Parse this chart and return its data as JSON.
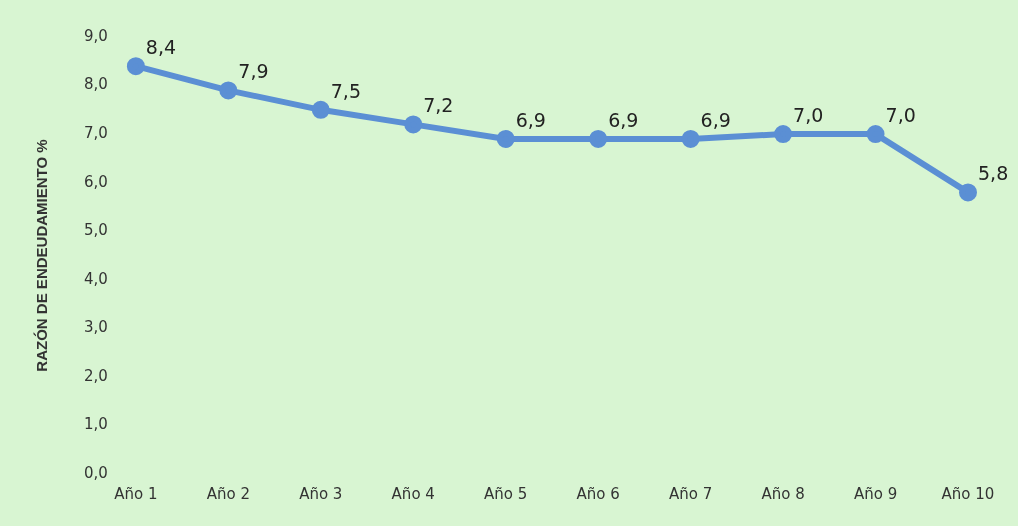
{
  "chart_data": {
    "type": "line",
    "ylabel": "RAZÓN DE ENDEUDAMIENTO %",
    "categories": [
      "Año 1",
      "Año 2",
      "Año 3",
      "Año 4",
      "Año 5",
      "Año 6",
      "Año 7",
      "Año 8",
      "Año 9",
      "Año 10"
    ],
    "series": [
      {
        "color": "#5b8fd4",
        "values": [
          8.4,
          7.9,
          7.5,
          7.2,
          6.9,
          6.9,
          6.9,
          7.0,
          7.0,
          5.8
        ],
        "value_labels": [
          "8,4",
          "7,9",
          "7,5",
          "7,2",
          "6,9",
          "6,9",
          "6,9",
          "7,0",
          "7,0",
          "5,8"
        ]
      }
    ],
    "ylim": [
      0,
      9
    ],
    "yticks": [
      {
        "value": 0,
        "label": "0,0"
      },
      {
        "value": 1,
        "label": "1,0"
      },
      {
        "value": 2,
        "label": "2,0"
      },
      {
        "value": 3,
        "label": "3,0"
      },
      {
        "value": 4,
        "label": "4,0"
      },
      {
        "value": 5,
        "label": "5,0"
      },
      {
        "value": 6,
        "label": "6,0"
      },
      {
        "value": 7,
        "label": "7,0"
      },
      {
        "value": 8,
        "label": "8,0"
      },
      {
        "value": 9,
        "label": "9,0"
      }
    ],
    "grid": false,
    "legend": false,
    "marker": "circle",
    "line_style": "solid"
  }
}
